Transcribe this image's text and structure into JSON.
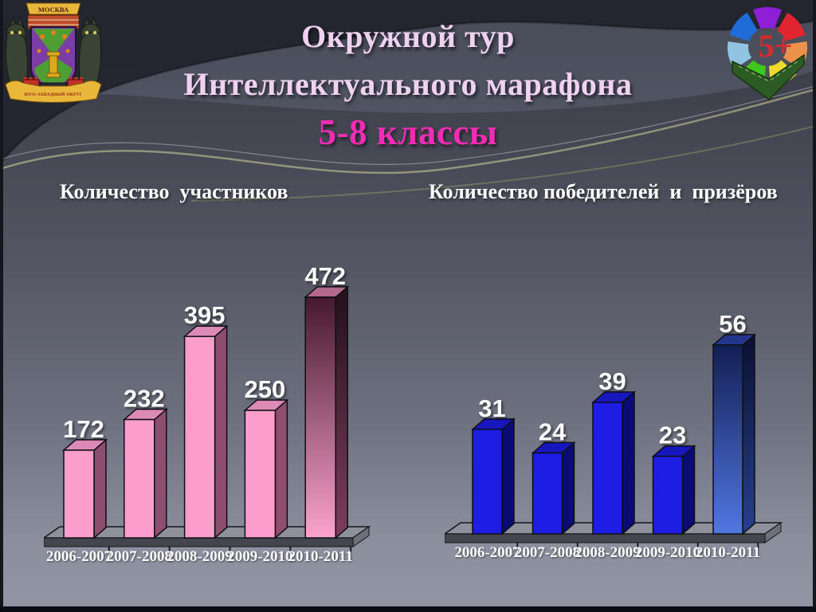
{
  "slide": {
    "title_line1": "Окружной тур",
    "title_line2": "Интеллектуального марафона",
    "title_line3": "5-8 классы",
    "title_color": "#EFD2F2",
    "title_accent_color": "#F22CB4",
    "background_top": "#34363f",
    "background_bottom": "#9295a4"
  },
  "logos": {
    "crest": {
      "banner_top": "МОСКВА",
      "ribbon_bottom": "ЮГО-ЗАПАДНЫЙ ОКРУГ"
    },
    "pinwheel": {
      "label": "5+",
      "label_color": "#D92B2B",
      "petal_colors": [
        "#8E1FD6",
        "#E02430",
        "#EC9149",
        "#F0DB2A",
        "#3FC81C",
        "#92C4E2",
        "#1F6BD8"
      ],
      "arrow_color": "#2C5B23"
    }
  },
  "chart_data": [
    {
      "type": "bar",
      "title": "Количество  участников",
      "categories": [
        "2006-2007",
        "2007-2008",
        "2008-2009",
        "2009-2010",
        "2010-2011"
      ],
      "values": [
        172,
        232,
        395,
        250,
        472
      ],
      "xlabel": "",
      "ylabel": "",
      "ylim": [
        0,
        500
      ],
      "grid": false,
      "legend": "none",
      "highlight_last": true,
      "colors": {
        "front": "#FB9ECB",
        "top": "#DE8AB6",
        "side": "#8E4E6F",
        "hl_front_top": "#45192E",
        "hl_front_bottom": "#FBA3CE",
        "hl_side_top": "#23101B",
        "hl_side_bottom": "#7C3E5C",
        "hl_top": "#B4688D"
      }
    },
    {
      "type": "bar",
      "title": "Количество победителей  и  призёров",
      "categories": [
        "2006-2007",
        "2007-2008",
        "2008-2009",
        "2009-2010",
        "2010-2011"
      ],
      "values": [
        31,
        24,
        39,
        23,
        56
      ],
      "xlabel": "",
      "ylabel": "",
      "ylim": [
        0,
        60
      ],
      "grid": false,
      "legend": "none",
      "highlight_last": true,
      "colors": {
        "front": "#1D1DE4",
        "top": "#1717BE",
        "side": "#0B0B76",
        "hl_front_top": "#131E55",
        "hl_front_bottom": "#5077E2",
        "hl_side_top": "#0A1030",
        "hl_side_bottom": "#27408F",
        "hl_top": "#24368C"
      }
    }
  ]
}
